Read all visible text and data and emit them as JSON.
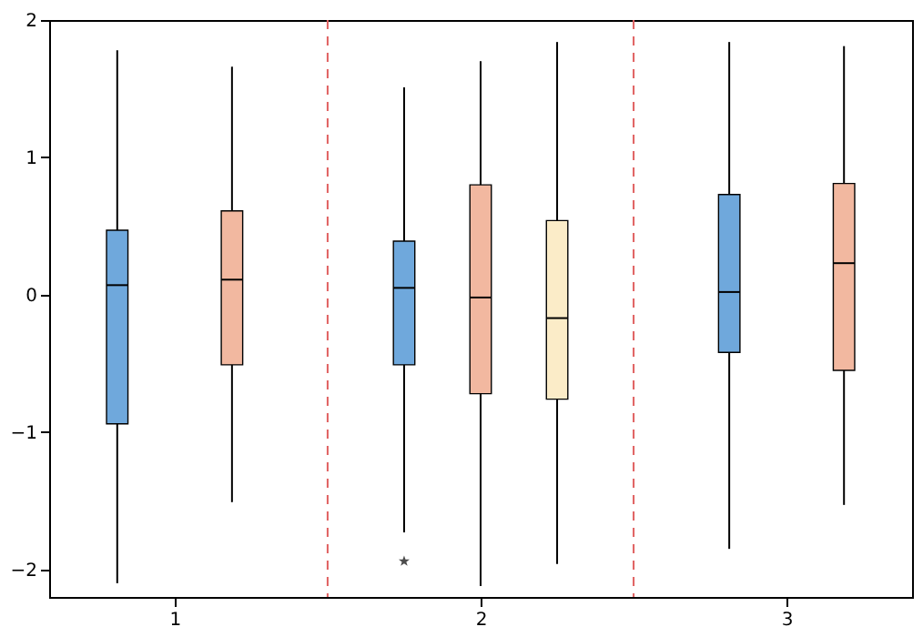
{
  "chart_data": {
    "type": "box",
    "x": [
      1,
      2,
      3
    ],
    "xlim": [
      0.59,
      3.41
    ],
    "xticks": [
      1,
      2,
      3
    ],
    "ylim": [
      -2.2,
      2
    ],
    "yticks": [
      -2,
      -1,
      0,
      1,
      2
    ],
    "grid": false,
    "marker": "star",
    "ref_lines": [
      {
        "axis": "x",
        "value": 1.5,
        "color": "#e06060",
        "line_style": "dashed"
      },
      {
        "axis": "x",
        "value": 2.5,
        "color": "#e06060",
        "line_style": "dashed"
      }
    ],
    "series": [
      {
        "color": "#6fa8dc",
        "boxes": [
          {
            "low": -2.1,
            "q1": -0.94,
            "median": 0.07,
            "q3": 0.47,
            "high": 1.78
          },
          {
            "low": -1.73,
            "q1": -0.51,
            "median": 0.05,
            "q3": 0.39,
            "high": 1.51,
            "outliers": [
              -1.94
            ]
          },
          {
            "low": -1.85,
            "q1": -0.42,
            "median": 0.02,
            "q3": 0.73,
            "high": 1.84
          }
        ]
      },
      {
        "color": "#f2b8a0",
        "boxes": [
          {
            "low": -1.51,
            "q1": -0.51,
            "median": 0.11,
            "q3": 0.61,
            "high": 1.66
          },
          {
            "low": -2.12,
            "q1": -0.72,
            "median": -0.02,
            "q3": 0.8,
            "high": 1.7
          },
          {
            "low": -1.53,
            "q1": -0.55,
            "median": 0.23,
            "q3": 0.81,
            "high": 1.81
          }
        ]
      },
      {
        "color": "#fbecc8",
        "boxes": [
          null,
          {
            "low": -1.96,
            "q1": -0.76,
            "median": -0.17,
            "q3": 0.54,
            "high": 1.84
          },
          null
        ]
      }
    ]
  }
}
